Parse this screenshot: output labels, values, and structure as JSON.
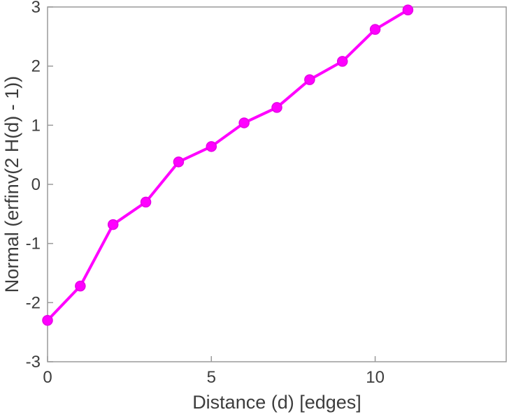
{
  "chart_data": {
    "type": "line",
    "x": [
      0,
      1,
      2,
      3,
      4,
      5,
      6,
      7,
      8,
      9,
      10,
      11
    ],
    "y": [
      -2.3,
      -1.72,
      -0.68,
      -0.3,
      0.38,
      0.64,
      1.04,
      1.3,
      1.77,
      2.08,
      2.62,
      2.95
    ],
    "title": "",
    "xlabel": "Distance (d) [edges]",
    "ylabel": "Normal (erfinv(2 H(d) - 1))",
    "xlim": [
      0,
      14
    ],
    "ylim": [
      -3,
      3
    ],
    "xticks": [
      0,
      5,
      10
    ],
    "yticks": [
      -3,
      -2,
      -1,
      0,
      1,
      2,
      3
    ],
    "grid": false,
    "legend_position": "none",
    "colors": {
      "line": "#FF00FF",
      "marker_fill": "#FF00FF",
      "marker_edge": "#E600E6",
      "axis_box": "#9a9a9a",
      "tick_text": "#3d3d3d",
      "background": "#FFFFFF"
    },
    "marker": "circle-filled",
    "line_width": 4
  }
}
